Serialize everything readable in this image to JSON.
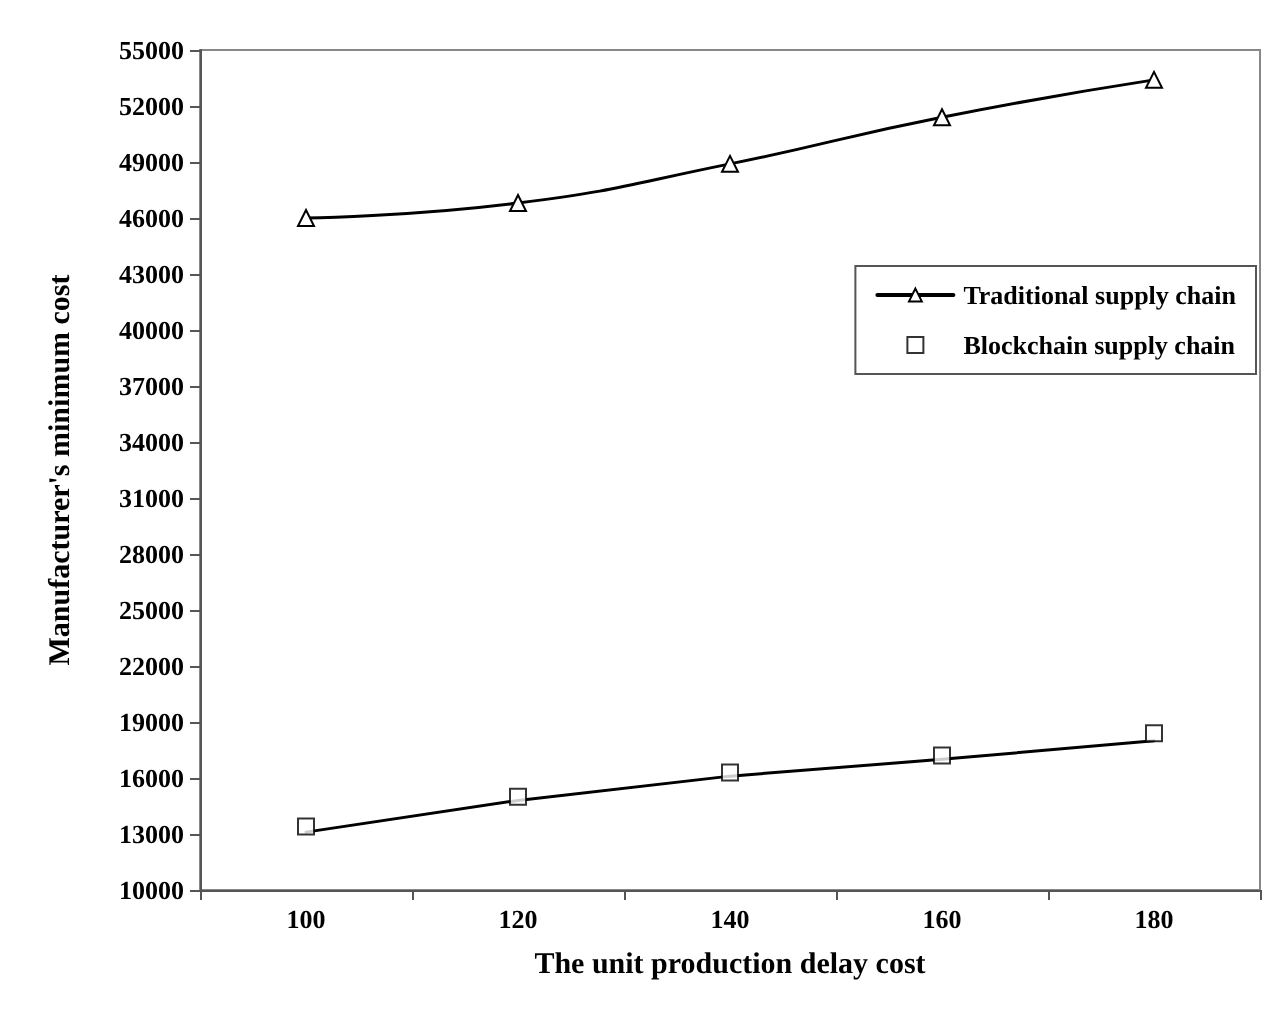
{
  "chart_data": {
    "type": "line",
    "xlabel": "The unit production delay cost",
    "ylabel": "Manufacturer's minimum cost",
    "categories": [
      "100",
      "120",
      "140",
      "160",
      "180"
    ],
    "series": [
      {
        "name": "Traditional supply chain",
        "color": "#000000",
        "marker": "triangle",
        "values": [
          46000,
          46800,
          48900,
          51400,
          53400
        ]
      },
      {
        "name": "Blockchain supply chain",
        "type": "scatter",
        "color": "#000000",
        "marker": "square",
        "values": [
          13400,
          15000,
          16300,
          17200,
          18400
        ]
      },
      {
        "type": "line",
        "color": "#000000",
        "marker": "none",
        "values": [
          13100,
          14800,
          16100,
          17000,
          18000
        ]
      }
    ],
    "ylim": [
      10000,
      55000
    ],
    "yticks": [
      10000,
      13000,
      16000,
      19000,
      22000,
      25000,
      28000,
      31000,
      34000,
      37000,
      40000,
      43000,
      46000,
      49000,
      52000,
      55000
    ],
    "grid": false,
    "legend": "top right",
    "line_style": "solid"
  }
}
